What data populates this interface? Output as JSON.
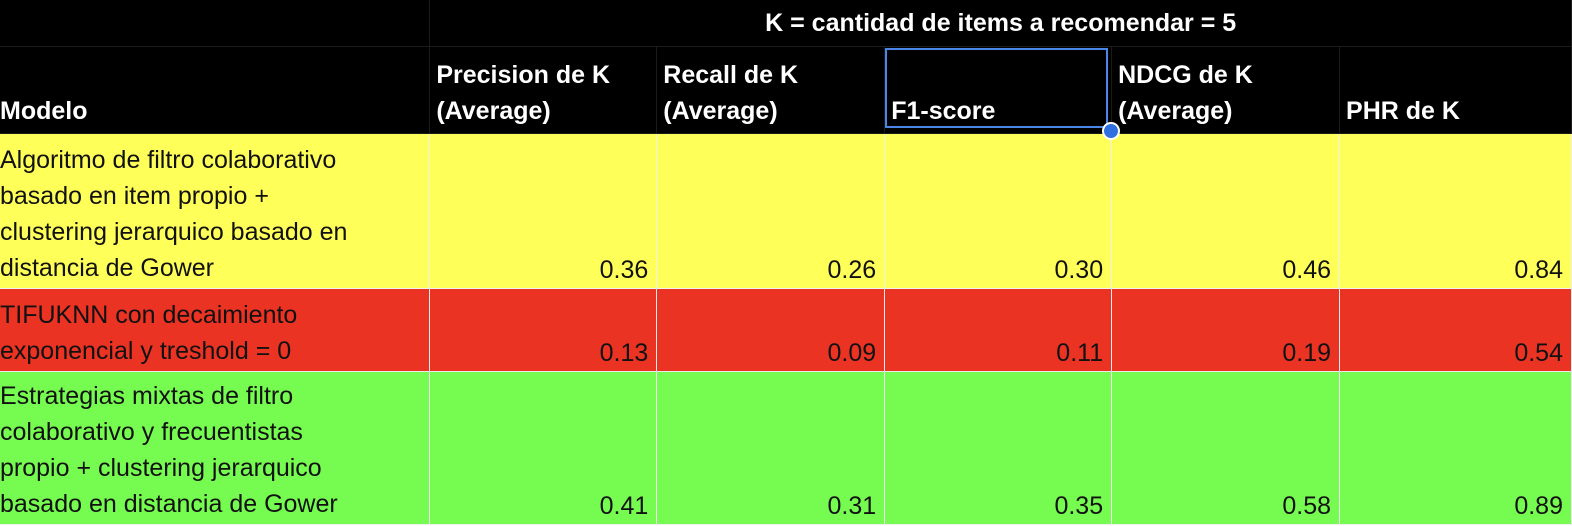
{
  "sheet": {
    "super_header": "K = cantidad de items a recomendar = 5",
    "columns": {
      "model": "Modelo",
      "precision": [
        "Precision de K",
        "(Average)"
      ],
      "recall": [
        "Recall de K",
        "(Average)"
      ],
      "f1": "F1-score",
      "ndcg": [
        "NDCG de K",
        "(Average)"
      ],
      "phr": "PHR de K"
    },
    "rows": [
      {
        "color": "#ffff59",
        "name_lines": [
          "Algoritmo de filtro colaborativo",
          "basado en item propio +",
          "clustering jerarquico basado en",
          "distancia de Gower"
        ],
        "values": [
          "0.36",
          "0.26",
          "0.30",
          "0.46",
          "0.84"
        ]
      },
      {
        "color": "#eb3324",
        "name_lines": [
          "TIFUKNN con decaimiento",
          "exponencial y treshold = 0"
        ],
        "values": [
          "0.13",
          "0.09",
          "0.11",
          "0.19",
          "0.54"
        ]
      },
      {
        "color": "#76fb50",
        "name_lines": [
          "Estrategias mixtas de filtro",
          "colaborativo y frecuentistas",
          "propio + clustering jerarquico",
          "basado en distancia de Gower"
        ],
        "values": [
          "0.41",
          "0.31",
          "0.35",
          "0.58",
          "0.89"
        ]
      }
    ],
    "selected_cell": "F1-score",
    "accent_color": "#4a86e8"
  }
}
